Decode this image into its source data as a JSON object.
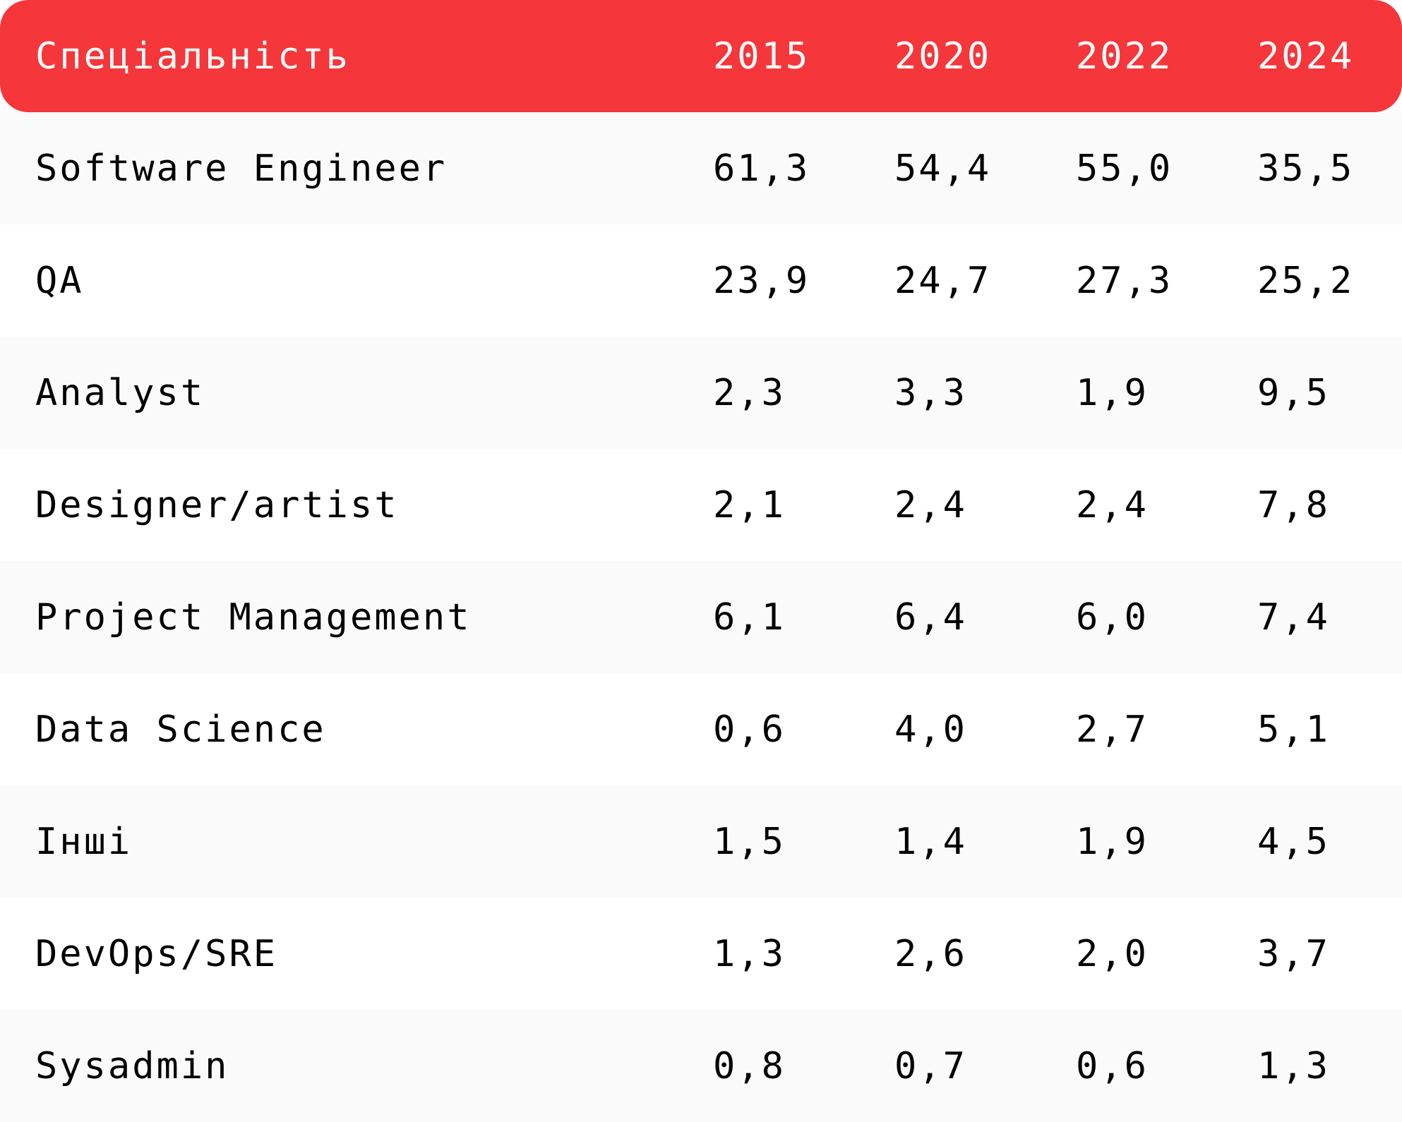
{
  "chart_data": {
    "type": "table",
    "columns": [
      "Спеціальність",
      "2015",
      "2020",
      "2022",
      "2024"
    ],
    "rows": [
      [
        "Software Engineer",
        "61,3",
        "54,4",
        "55,0",
        "35,5"
      ],
      [
        "QA",
        "23,9",
        "24,7",
        "27,3",
        "25,2"
      ],
      [
        "Analyst",
        "2,3",
        "3,3",
        "1,9",
        "9,5"
      ],
      [
        "Designer/artist",
        "2,1",
        "2,4",
        "2,4",
        "7,8"
      ],
      [
        "Project Management",
        "6,1",
        "6,4",
        "6,0",
        "7,4"
      ],
      [
        "Data Science",
        "0,6",
        "4,0",
        "2,7",
        "5,1"
      ],
      [
        "Інші",
        "1,5",
        "1,4",
        "1,9",
        "4,5"
      ],
      [
        "DevOps/SRE",
        "1,3",
        "2,6",
        "2,0",
        "3,7"
      ],
      [
        "Sysadmin",
        "0,8",
        "0,7",
        "0,6",
        "1,3"
      ]
    ]
  },
  "colors": {
    "header_background": "#f5373b",
    "header_text": "#ffffff",
    "row_alt_background": "#fafafa",
    "row_background": "#ffffff",
    "text": "#000000"
  }
}
